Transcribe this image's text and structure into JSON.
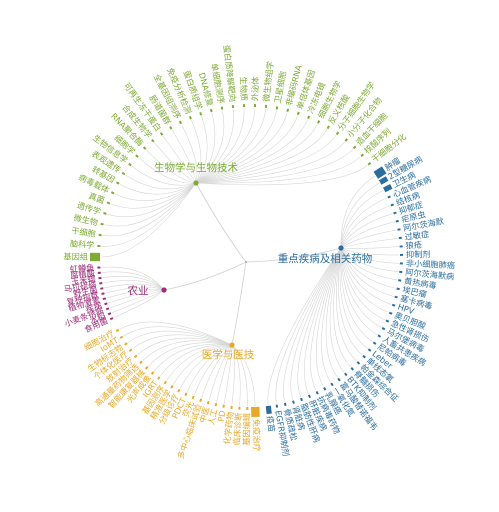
{
  "diagram": {
    "root_color": "#999999",
    "categories": [
      {
        "id": "biotech",
        "label": "生物学与生物技术",
        "color": "#7dab35",
        "leaves": [
          {
            "label": "基因组",
            "weight": 4
          },
          {
            "label": "脑科学",
            "weight": 1
          },
          {
            "label": "干细胞",
            "weight": 1
          },
          {
            "label": "微生物",
            "weight": 1
          },
          {
            "label": "遗传学",
            "weight": 1
          },
          {
            "label": "真菌",
            "weight": 1
          },
          {
            "label": "病毒载体",
            "weight": 1
          },
          {
            "label": "转基因",
            "weight": 1
          },
          {
            "label": "表观遗传",
            "weight": 1
          },
          {
            "label": "生物信息学",
            "weight": 1
          },
          {
            "label": "细胞学",
            "weight": 1
          },
          {
            "label": "RNA聚合酶",
            "weight": 1
          },
          {
            "label": "合成生物学",
            "weight": 1
          },
          {
            "label": "可再生冻干蛋白",
            "weight": 1
          },
          {
            "label": "肠道菌群",
            "weight": 1
          },
          {
            "label": "全基因组测序",
            "weight": 1
          },
          {
            "label": "免疫分析检测",
            "weight": 1
          },
          {
            "label": "蛋白质组学",
            "weight": 1
          },
          {
            "label": "DNA修复",
            "weight": 1
          },
          {
            "label": "单细胞测序",
            "weight": 1
          },
          {
            "label": "蛋白质降解靶向",
            "weight": 1
          },
          {
            "label": "生物质",
            "weight": 1
          },
          {
            "label": "外泌体",
            "weight": 1
          },
          {
            "label": "微生物组学",
            "weight": 1
          },
          {
            "label": "卫星细胞",
            "weight": 1
          },
          {
            "label": "非编码RNA",
            "weight": 1
          },
          {
            "label": "单倍体基因",
            "weight": 1
          },
          {
            "label": "冷冻电镜",
            "weight": 1
          },
          {
            "label": "细胞生物学",
            "weight": 1
          },
          {
            "label": "反义核酸",
            "weight": 1
          },
          {
            "label": "分子细胞生物学",
            "weight": 1
          },
          {
            "label": "小分子化合物",
            "weight": 1
          },
          {
            "label": "造血干细胞",
            "weight": 1
          },
          {
            "label": "核酸序列",
            "weight": 1
          },
          {
            "label": "干细胞分化",
            "weight": 1
          }
        ]
      },
      {
        "id": "disease",
        "label": "重点疾病及相关药物",
        "color": "#2b6e9e",
        "leaves": [
          {
            "label": "肿瘤",
            "weight": 4
          },
          {
            "label": "2型糖尿病",
            "weight": 2
          },
          {
            "label": "卫生病",
            "weight": 2
          },
          {
            "label": "心血管疾病",
            "weight": 1
          },
          {
            "label": "结核病",
            "weight": 1
          },
          {
            "label": "抑郁症",
            "weight": 1
          },
          {
            "label": "疟原虫",
            "weight": 1
          },
          {
            "label": "阿尔茨海默",
            "weight": 1
          },
          {
            "label": "过敏症",
            "weight": 1
          },
          {
            "label": "狼疮",
            "weight": 1
          },
          {
            "label": "抑制剂",
            "weight": 1
          },
          {
            "label": "非小细胞肺癌",
            "weight": 1
          },
          {
            "label": "阿尔茨海默病",
            "weight": 1
          },
          {
            "label": "黄热病毒",
            "weight": 1
          },
          {
            "label": "埃巴瘤",
            "weight": 1
          },
          {
            "label": "塞卡病毒",
            "weight": 1
          },
          {
            "label": "HPV",
            "weight": 1
          },
          {
            "label": "奥贝胆酸",
            "weight": 1
          },
          {
            "label": "急性肾损伤",
            "weight": 1
          },
          {
            "label": "马尔堡病毒",
            "weight": 1
          },
          {
            "label": "人畜共患疾病",
            "weight": 1
          },
          {
            "label": "尼帕病毒",
            "weight": 1
          },
          {
            "label": "Leber",
            "weight": 1
          },
          {
            "label": "单线态氧",
            "weight": 1
          },
          {
            "label": "帕金森综合征",
            "weight": 1
          },
          {
            "label": "脊髓损伤",
            "weight": 1
          },
          {
            "label": "BTK抑制剂",
            "weight": 1
          },
          {
            "label": "富马酸替诺福韦",
            "weight": 1
          },
          {
            "label": "一氧化氮",
            "weight": 1
          },
          {
            "label": "乳腺癌",
            "weight": 1
          },
          {
            "label": "抗病毒药物",
            "weight": 1
          },
          {
            "label": "肝脏疾病",
            "weight": 1
          },
          {
            "label": "脂肪性肝病",
            "weight": 1
          },
          {
            "label": "肾脏病",
            "weight": 1
          },
          {
            "label": "骨质疏松",
            "weight": 1
          },
          {
            "label": "EGFR抑制剂",
            "weight": 1
          },
          {
            "label": "疫苗",
            "weight": 2
          }
        ]
      },
      {
        "id": "medicine",
        "label": "医学与医技",
        "color": "#e8a928",
        "leaves": [
          {
            "label": "免疫治疗",
            "weight": 4
          },
          {
            "label": "基因编辑",
            "weight": 1
          },
          {
            "label": "临床诊断",
            "weight": 1
          },
          {
            "label": "化学药物",
            "weight": 1
          },
          {
            "label": "PD",
            "weight": 1
          },
          {
            "label": "人工",
            "weight": 1
          },
          {
            "label": "中医",
            "weight": 1
          },
          {
            "label": "多中心临床试验",
            "weight": 1
          },
          {
            "label": "荧光",
            "weight": 1
          },
          {
            "label": "PDCT",
            "weight": 1
          },
          {
            "label": "分级诊疗",
            "weight": 1
          },
          {
            "label": "精准医学",
            "weight": 1
          },
          {
            "label": "基因测序",
            "weight": 1
          },
          {
            "label": "IGRT",
            "weight": 1
          },
          {
            "label": "光声成像",
            "weight": 1
          },
          {
            "label": "智能康复器械",
            "weight": 1
          },
          {
            "label": "高通量药物筛选",
            "weight": 1
          },
          {
            "label": "放射治疗",
            "weight": 1
          },
          {
            "label": "个体化医疗",
            "weight": 1
          },
          {
            "label": "生物标志物",
            "weight": 1
          },
          {
            "label": "IoMT",
            "weight": 1
          },
          {
            "label": "细胞治疗",
            "weight": 1
          }
        ]
      },
      {
        "id": "agriculture",
        "label": "农业",
        "color": "#9c2d7b",
        "leaves": [
          {
            "label": "食用菌",
            "weight": 1
          },
          {
            "label": "水稻",
            "weight": 1
          },
          {
            "label": "小麦条锈病",
            "weight": 1
          },
          {
            "label": "疾病",
            "weight": 1
          },
          {
            "label": "植物激素",
            "weight": 1
          },
          {
            "label": "复种指数",
            "weight": 1
          },
          {
            "label": "野生菌",
            "weight": 1
          },
          {
            "label": "马拉硫磷",
            "weight": 1
          },
          {
            "label": "玉米螟",
            "weight": 1
          },
          {
            "label": "腐植酸",
            "weight": 1
          },
          {
            "label": "虹鳟鱼",
            "weight": 1
          }
        ]
      }
    ]
  }
}
